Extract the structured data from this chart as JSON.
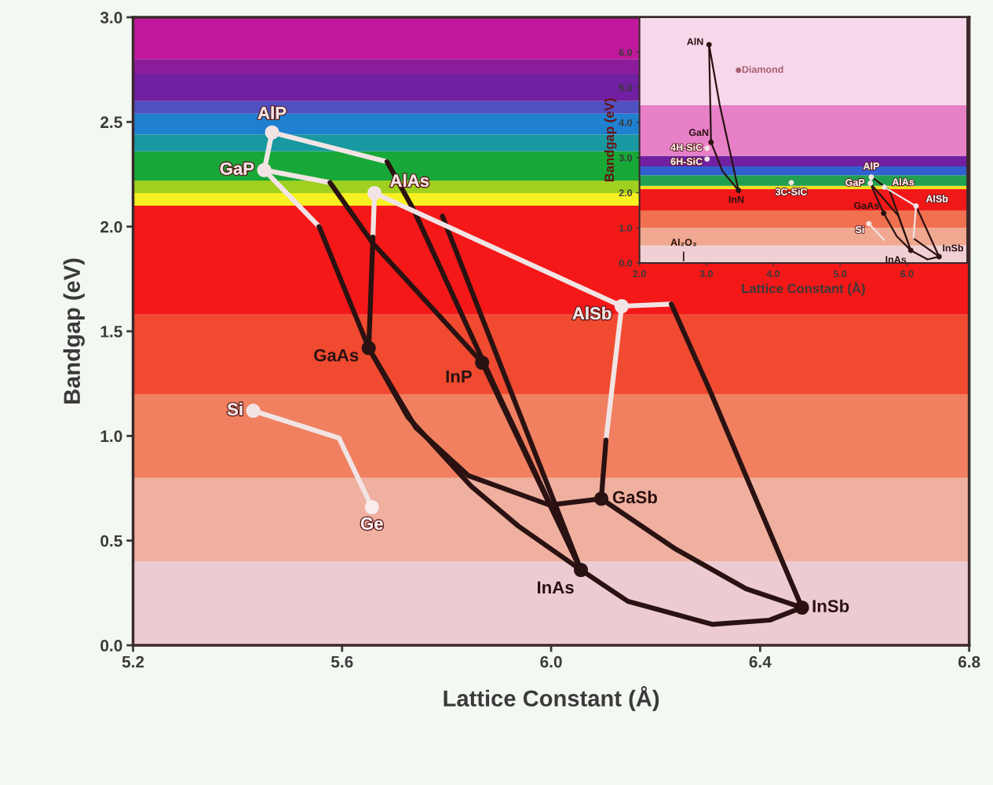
{
  "chart_data": [
    {
      "type": "scatter",
      "xlabel": "Lattice Constant (Å)",
      "ylabel": "Bandgap (eV)",
      "xlim": [
        5.2,
        6.8
      ],
      "ylim": [
        0.0,
        3.0
      ],
      "xticks": [
        5.2,
        5.6,
        {
          "value": 6.0,
          "label": "6.0"
        },
        6.4,
        6.8
      ],
      "yticks": [
        {
          "value": 0.0,
          "label": "0.0"
        },
        0.5,
        {
          "value": 1.0,
          "label": "1.0"
        },
        1.5,
        {
          "value": 2.0,
          "label": "2.0"
        },
        2.5,
        {
          "value": 3.0,
          "label": "3.0"
        }
      ],
      "bands": [
        {
          "axis": "y",
          "from": 0.0,
          "to": 0.4,
          "color": "#ecccd2"
        },
        {
          "axis": "y",
          "from": 0.4,
          "to": 0.8,
          "color": "#f0b0a0"
        },
        {
          "axis": "y",
          "from": 0.8,
          "to": 1.2,
          "color": "#f08060"
        },
        {
          "axis": "y",
          "from": 1.2,
          "to": 1.58,
          "color": "#f04a30"
        },
        {
          "axis": "y",
          "from": 1.58,
          "to": 2.1,
          "color": "#f41818"
        },
        {
          "axis": "y",
          "from": 2.1,
          "to": 2.16,
          "color": "#f8f020"
        },
        {
          "axis": "y",
          "from": 2.16,
          "to": 2.22,
          "color": "#a0d020"
        },
        {
          "axis": "y",
          "from": 2.22,
          "to": 2.36,
          "color": "#18a838"
        },
        {
          "axis": "y",
          "from": 2.36,
          "to": 2.44,
          "color": "#1898a0"
        },
        {
          "axis": "y",
          "from": 2.44,
          "to": 2.54,
          "color": "#2080d0"
        },
        {
          "axis": "y",
          "from": 2.54,
          "to": 2.6,
          "color": "#5050c0"
        },
        {
          "axis": "y",
          "from": 2.6,
          "to": 2.73,
          "color": "#7020a0"
        },
        {
          "axis": "y",
          "from": 2.73,
          "to": 2.8,
          "color": "#8c1c9c"
        },
        {
          "axis": "y",
          "from": 2.8,
          "to": 3.0,
          "color": "#c0189c"
        }
      ],
      "series": [
        {
          "type": "line",
          "color": "#f2e4e4",
          "x": [
            5.466,
            5.451
          ],
          "values": [
            2.45,
            2.27
          ]
        },
        {
          "type": "line",
          "color": "#f2e4e4",
          "x": [
            5.466,
            5.686
          ],
          "values": [
            2.45,
            2.31
          ]
        },
        {
          "type": "line",
          "color": "#2a1212",
          "x": [
            5.686,
            5.737,
            5.899,
            6.057
          ],
          "values": [
            2.31,
            2.08,
            1.2,
            0.36
          ]
        },
        {
          "type": "line",
          "color": "#f2e4e4",
          "x": [
            5.451,
            5.577
          ],
          "values": [
            2.27,
            2.21
          ]
        },
        {
          "type": "line",
          "color": "#2a1212",
          "x": [
            5.577,
            5.659,
            5.868
          ],
          "values": [
            2.21,
            1.92,
            1.35
          ]
        },
        {
          "type": "line",
          "color": "#f2e4e4",
          "x": [
            5.451,
            5.556
          ],
          "values": [
            2.27,
            2.0
          ]
        },
        {
          "type": "line",
          "color": "#2a1212",
          "x": [
            5.556,
            5.651
          ],
          "values": [
            2.0,
            1.42
          ]
        },
        {
          "type": "line",
          "color": "#f2e4e4",
          "x": [
            5.662,
            5.659
          ],
          "values": [
            2.16,
            1.95
          ]
        },
        {
          "type": "line",
          "color": "#2a1212",
          "x": [
            5.659,
            5.651
          ],
          "values": [
            1.95,
            1.42
          ]
        },
        {
          "type": "line",
          "color": "#2a1212",
          "x": [
            5.792,
            5.925,
            6.057
          ],
          "values": [
            2.05,
            1.2,
            0.36
          ]
        },
        {
          "type": "line",
          "color": "#f2e4e4",
          "x": [
            5.662,
            6.135
          ],
          "values": [
            2.16,
            1.62
          ]
        },
        {
          "type": "line",
          "color": "#2a1212",
          "x": [
            5.868,
            5.967,
            6.057
          ],
          "values": [
            1.35,
            0.83,
            0.36
          ]
        },
        {
          "type": "line",
          "color": "#2a1212",
          "x": [
            5.651,
            5.726,
            5.847,
            5.937,
            6.057
          ],
          "values": [
            1.42,
            1.09,
            0.76,
            0.57,
            0.36
          ]
        },
        {
          "type": "line",
          "color": "#2a1212",
          "x": [
            5.651,
            5.741,
            5.842,
            5.997,
            6.096
          ],
          "values": [
            1.42,
            1.04,
            0.81,
            0.67,
            0.7
          ]
        },
        {
          "type": "line",
          "color": "#f2e4e4",
          "x": [
            6.135,
            6.105
          ],
          "values": [
            1.62,
            0.98
          ]
        },
        {
          "type": "line",
          "color": "#2a1212",
          "x": [
            6.105,
            6.096
          ],
          "values": [
            0.98,
            0.7
          ]
        },
        {
          "type": "line",
          "color": "#f2e4e4",
          "x": [
            6.135,
            6.23
          ],
          "values": [
            1.62,
            1.63
          ]
        },
        {
          "type": "line",
          "color": "#2a1212",
          "x": [
            6.23,
            6.305,
            6.388,
            6.48
          ],
          "values": [
            1.63,
            1.21,
            0.72,
            0.18
          ]
        },
        {
          "type": "line",
          "color": "#2a1212",
          "x": [
            6.096,
            6.238,
            6.373,
            6.48
          ],
          "values": [
            0.7,
            0.46,
            0.27,
            0.18
          ]
        },
        {
          "type": "line",
          "color": "#2a1212",
          "x": [
            6.057,
            6.147,
            6.308,
            6.418,
            6.48
          ],
          "values": [
            0.36,
            0.21,
            0.1,
            0.12,
            0.18
          ]
        },
        {
          "type": "line",
          "color": "#f2e4e4",
          "x": [
            5.43,
            5.594,
            5.657
          ],
          "values": [
            1.12,
            0.99,
            0.66
          ]
        },
        {
          "name": "AlP",
          "color": "#f2e4e4",
          "marker": "circle",
          "x": [
            5.466
          ],
          "values": [
            2.45
          ]
        },
        {
          "name": "GaP",
          "color": "#f2e4e4",
          "marker": "circle",
          "x": [
            5.451
          ],
          "values": [
            2.27
          ]
        },
        {
          "name": "AlAs",
          "color": "#f2e4e4",
          "marker": "circle",
          "x": [
            5.662
          ],
          "values": [
            2.16
          ]
        },
        {
          "name": "AlSb",
          "color": "#f2e4e4",
          "marker": "circle",
          "x": [
            6.135
          ],
          "values": [
            1.62
          ]
        },
        {
          "name": "GaAs",
          "color": "#2a1212",
          "marker": "circle",
          "x": [
            5.651
          ],
          "values": [
            1.42
          ]
        },
        {
          "name": "InP",
          "color": "#2a1212",
          "marker": "circle",
          "x": [
            5.868
          ],
          "values": [
            1.35
          ]
        },
        {
          "name": "Si",
          "color": "#f2e4e4",
          "marker": "circle",
          "x": [
            5.43
          ],
          "values": [
            1.12
          ]
        },
        {
          "name": "Ge",
          "color": "#f8ecec",
          "marker": "circle",
          "x": [
            5.657
          ],
          "values": [
            0.66
          ]
        },
        {
          "name": "GaSb",
          "color": "#2a1212",
          "marker": "circle",
          "x": [
            6.096
          ],
          "values": [
            0.7
          ]
        },
        {
          "name": "InAs",
          "color": "#2a1212",
          "marker": "circle",
          "x": [
            6.057
          ],
          "values": [
            0.36
          ]
        },
        {
          "name": "InSb",
          "color": "#2a1212",
          "marker": "circle",
          "x": [
            6.48
          ],
          "values": [
            0.18
          ]
        }
      ]
    },
    {
      "type": "scatter",
      "xlabel": "Lattice Constant (Å)",
      "ylabel": "Bandgap (eV)",
      "xlim": [
        2.0,
        6.9
      ],
      "ylim": [
        0.0,
        7.0
      ],
      "xticks": [
        {
          "value": 2.0,
          "label": "2.0"
        },
        {
          "value": 3.0,
          "label": "3.0"
        },
        {
          "value": 4.0,
          "label": "4.0"
        },
        {
          "value": 5.0,
          "label": "5.0"
        },
        {
          "value": 6.0,
          "label": "6.0"
        }
      ],
      "yticks": [
        {
          "value": 0.0,
          "label": "0.0"
        },
        {
          "value": 1.0,
          "label": "1.0"
        },
        {
          "value": 2.0,
          "label": "2.0"
        },
        {
          "value": 3.0,
          "label": "3.0"
        },
        {
          "value": 4.0,
          "label": "4.0"
        },
        {
          "value": 5.0,
          "label": "5.0"
        },
        {
          "value": 6.0,
          "label": "6.0"
        }
      ],
      "annotations": [
        {
          "text": "Al₂O₃",
          "x": 2.66,
          "y": 0.0
        }
      ],
      "bands": [
        {
          "axis": "y",
          "from": 0.0,
          "to": 0.5,
          "color": "#f0d0d4"
        },
        {
          "axis": "y",
          "from": 0.5,
          "to": 1.0,
          "color": "#f0a890"
        },
        {
          "axis": "y",
          "from": 1.0,
          "to": 1.5,
          "color": "#f07050"
        },
        {
          "axis": "y",
          "from": 1.5,
          "to": 2.1,
          "color": "#f01818"
        },
        {
          "axis": "y",
          "from": 2.1,
          "to": 2.2,
          "color": "#f0e020"
        },
        {
          "axis": "y",
          "from": 2.2,
          "to": 2.5,
          "color": "#20a050"
        },
        {
          "axis": "y",
          "from": 2.5,
          "to": 2.75,
          "color": "#3060d0"
        },
        {
          "axis": "y",
          "from": 2.75,
          "to": 3.05,
          "color": "#7020a0"
        },
        {
          "axis": "y",
          "from": 3.05,
          "to": 4.5,
          "color": "#e880c8"
        },
        {
          "axis": "y",
          "from": 4.5,
          "to": 7.0,
          "color": "#f6d8ea"
        }
      ],
      "series": [
        {
          "type": "line",
          "color": "#2a1212",
          "x": [
            3.04,
            3.07,
            null,
            3.07,
            3.24,
            3.48,
            null,
            3.04,
            3.2,
            3.48
          ],
          "values": [
            6.22,
            3.44,
            null,
            3.44,
            2.62,
            2.07,
            null,
            6.22,
            4.5,
            2.07
          ]
        },
        {
          "type": "line",
          "color": "#2a1212",
          "x": [
            5.466,
            5.737,
            6.057,
            null,
            5.451,
            5.868,
            6.057,
            null,
            5.451,
            5.651,
            5.847,
            6.057,
            null,
            6.135,
            6.48,
            null,
            6.096,
            6.48,
            null,
            6.057,
            6.308,
            6.48
          ],
          "values": [
            2.45,
            2.08,
            0.36,
            null,
            2.27,
            1.35,
            0.36,
            null,
            2.27,
            1.42,
            0.76,
            0.36,
            null,
            1.62,
            0.18,
            null,
            0.7,
            0.18,
            null,
            0.36,
            0.1,
            0.18
          ]
        },
        {
          "type": "line",
          "color": "#f2e4e4",
          "x": [
            5.451,
            5.466,
            null,
            5.662,
            6.135,
            6.096,
            null,
            5.43,
            5.657
          ],
          "values": [
            2.27,
            2.45,
            null,
            2.16,
            1.62,
            0.7,
            null,
            1.12,
            0.66
          ]
        },
        {
          "name": "AlN",
          "color": "#2a1212",
          "marker": "circle",
          "x": [
            3.04
          ],
          "values": [
            6.22
          ]
        },
        {
          "name": "GaN",
          "color": "#2a1212",
          "marker": "circle",
          "x": [
            3.07
          ],
          "values": [
            3.44
          ]
        },
        {
          "name": "4H-SiC",
          "color": "#f2e4e4",
          "marker": "circle",
          "x": [
            3.01
          ],
          "values": [
            3.27
          ]
        },
        {
          "name": "6H-SiC",
          "color": "#f2e4e4",
          "marker": "circle",
          "x": [
            3.01
          ],
          "values": [
            2.96
          ]
        },
        {
          "name": "InN",
          "color": "#2a1212",
          "marker": "circle",
          "x": [
            3.48
          ],
          "values": [
            2.07
          ]
        },
        {
          "name": "Diamond",
          "color": "#a86070",
          "marker": "circle",
          "x": [
            3.48
          ],
          "values": [
            5.49
          ]
        },
        {
          "name": "3C-SiC",
          "color": "#f2e4e4",
          "marker": "circle",
          "x": [
            4.27
          ],
          "values": [
            2.29
          ]
        },
        {
          "name": "AlP",
          "color": "#f2e4e4",
          "marker": "circle",
          "x": [
            5.466
          ],
          "values": [
            2.45
          ]
        },
        {
          "name": "GaP",
          "color": "#f2e4e4",
          "marker": "circle",
          "x": [
            5.451
          ],
          "values": [
            2.27
          ]
        },
        {
          "name": "AlAs",
          "color": "#f2e4e4",
          "marker": "circle",
          "x": [
            5.662
          ],
          "values": [
            2.16
          ]
        },
        {
          "name": "AlSb",
          "color": "#f2e4e4",
          "marker": "circle",
          "x": [
            6.135
          ],
          "values": [
            1.62
          ]
        },
        {
          "name": "GaAs",
          "color": "#2a1212",
          "marker": "circle",
          "x": [
            5.651
          ],
          "values": [
            1.42
          ]
        },
        {
          "name": "Si",
          "color": "#f2e4e4",
          "marker": "circle",
          "x": [
            5.43
          ],
          "values": [
            1.12
          ]
        },
        {
          "name": "InAs",
          "color": "#2a1212",
          "marker": "circle",
          "x": [
            6.057
          ],
          "values": [
            0.36
          ]
        },
        {
          "name": "InSb",
          "color": "#2a1212",
          "marker": "circle",
          "x": [
            6.48
          ],
          "values": [
            0.18
          ]
        }
      ]
    }
  ]
}
